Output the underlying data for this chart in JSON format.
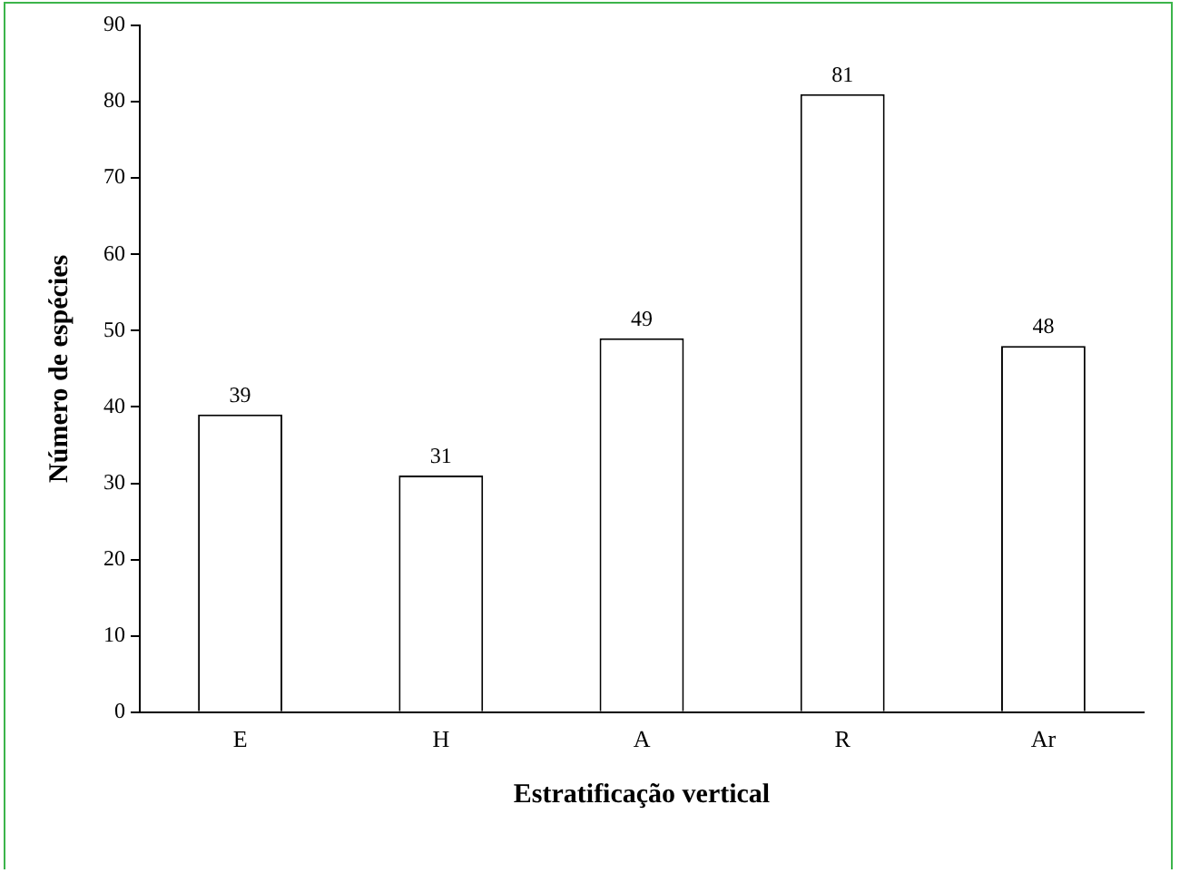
{
  "chart_data": {
    "type": "bar",
    "xlabel": "Estratificação vertical",
    "ylabel": "Número de espécies",
    "categories": [
      "E",
      "H",
      "A",
      "R",
      "Ar"
    ],
    "values": [
      39,
      31,
      49,
      81,
      48
    ],
    "color": "#ffffff",
    "ylim": [
      0,
      90
    ],
    "yticks": [
      0,
      10,
      20,
      30,
      40,
      50,
      60,
      70,
      80,
      90
    ],
    "grid": false,
    "data_labels": true
  }
}
